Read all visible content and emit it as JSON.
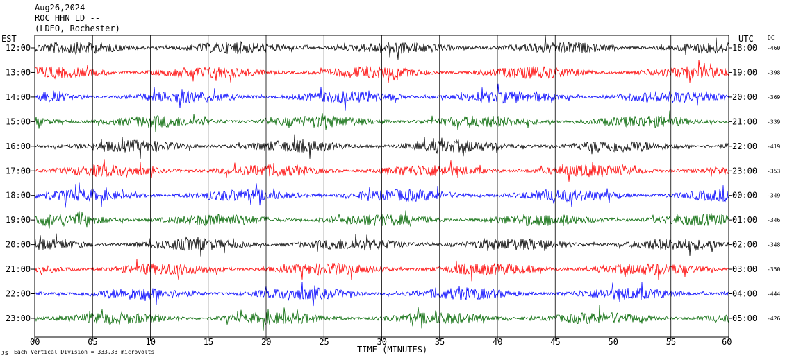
{
  "header": {
    "date": "Aug26,2024",
    "station": "ROC HHN LD --",
    "location": "(LDEO, Rochester)"
  },
  "left_axis_label": "EST",
  "right_axis_label": "UTC",
  "dc_label": "DC",
  "footer": {
    "xlabel": "TIME (MINUTES)",
    "scale_note": "Each Vertical Division =  333.33 microvolts",
    "corner_mark": "JS"
  },
  "chart_data": {
    "type": "line",
    "title": "",
    "xlabel": "TIME (MINUTES)",
    "xlim": [
      0,
      60
    ],
    "x_ticks": [
      "00",
      "05",
      "10",
      "15",
      "20",
      "25",
      "30",
      "35",
      "40",
      "45",
      "50",
      "55",
      "60"
    ],
    "grid": "vertical lines every 5 minutes",
    "trace_colors": [
      "#000000",
      "#ff0000",
      "#0000ff",
      "#006600"
    ],
    "rows": [
      {
        "est": "12:00",
        "utc": "18:00",
        "dc": "-460",
        "color": "#000000"
      },
      {
        "est": "13:00",
        "utc": "19:00",
        "dc": "-398",
        "color": "#ff0000"
      },
      {
        "est": "14:00",
        "utc": "20:00",
        "dc": "-369",
        "color": "#0000ff"
      },
      {
        "est": "15:00",
        "utc": "21:00",
        "dc": "-339",
        "color": "#006600"
      },
      {
        "est": "16:00",
        "utc": "22:00",
        "dc": "-419",
        "color": "#000000"
      },
      {
        "est": "17:00",
        "utc": "23:00",
        "dc": "-353",
        "color": "#ff0000"
      },
      {
        "est": "18:00",
        "utc": "00:00",
        "dc": "-349",
        "color": "#0000ff"
      },
      {
        "est": "19:00",
        "utc": "01:00",
        "dc": "-346",
        "color": "#006600"
      },
      {
        "est": "20:00",
        "utc": "02:00",
        "dc": "-348",
        "color": "#000000"
      },
      {
        "est": "21:00",
        "utc": "03:00",
        "dc": "-350",
        "color": "#ff0000"
      },
      {
        "est": "22:00",
        "utc": "04:00",
        "dc": "-444",
        "color": "#0000ff"
      },
      {
        "est": "23:00",
        "utc": "05:00",
        "dc": "-426",
        "color": "#006600"
      }
    ]
  }
}
